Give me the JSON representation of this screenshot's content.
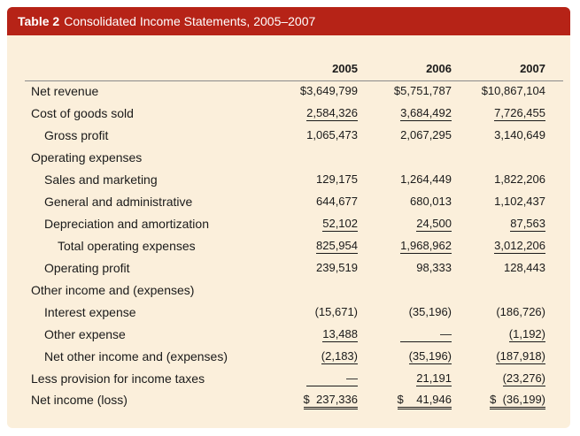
{
  "table": {
    "number": "Table 2",
    "title": "Consolidated Income Statements, 2005–2007",
    "years": [
      "2005",
      "2006",
      "2007"
    ],
    "rows": [
      {
        "label": "Net revenue",
        "values": [
          "$3,649,799",
          "$5,751,787",
          "$10,867,104"
        ]
      },
      {
        "label": "Cost of goods sold",
        "values": [
          "2,584,326",
          "3,684,492",
          "7,726,455"
        ]
      },
      {
        "label": "Gross profit",
        "values": [
          "1,065,473",
          "2,067,295",
          "3,140,649"
        ]
      },
      {
        "label": "Operating expenses",
        "values": [
          "",
          "",
          ""
        ]
      },
      {
        "label": "Sales and marketing",
        "values": [
          "129,175",
          "1,264,449",
          "1,822,206"
        ]
      },
      {
        "label": "General and administrative",
        "values": [
          "644,677",
          "680,013",
          "1,102,437"
        ]
      },
      {
        "label": "Depreciation and amortization",
        "values": [
          "52,102",
          "24,500",
          "87,563"
        ]
      },
      {
        "label": "Total operating expenses",
        "values": [
          "825,954",
          "1,968,962",
          "3,012,206"
        ]
      },
      {
        "label": "Operating profit",
        "values": [
          "239,519",
          "98,333",
          "128,443"
        ]
      },
      {
        "label": "Other income and (expenses)",
        "values": [
          "",
          "",
          ""
        ]
      },
      {
        "label": "Interest expense",
        "values": [
          "(15,671)",
          "(35,196)",
          "(186,726)"
        ]
      },
      {
        "label": "Other expense",
        "values": [
          "13,488",
          "—",
          "(1,192)"
        ]
      },
      {
        "label": "Net other income and (expenses)",
        "values": [
          "(2,183)",
          "(35,196)",
          "(187,918)"
        ]
      },
      {
        "label": "Less provision for income taxes",
        "values": [
          "—",
          "21,191",
          "(23,276)"
        ]
      },
      {
        "label": "Net income (loss)",
        "values": [
          "237,336",
          "41,946",
          "(36,199)"
        ]
      }
    ],
    "total_currency_symbol": "$"
  }
}
